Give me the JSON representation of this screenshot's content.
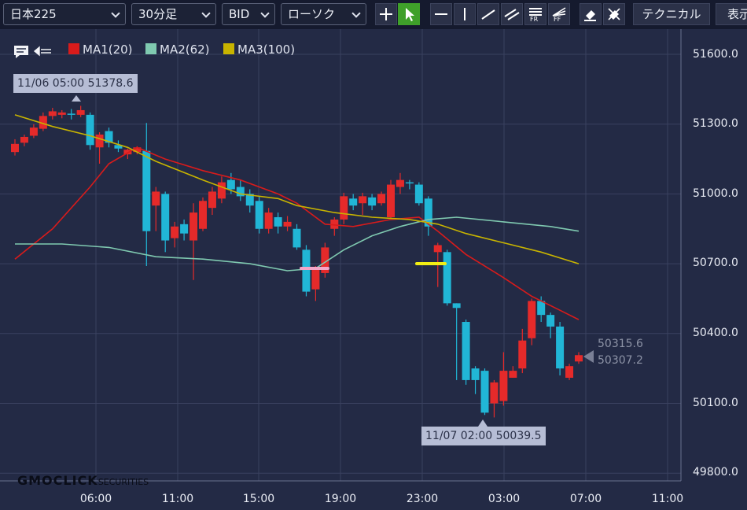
{
  "toolbar": {
    "symbol": "日本225",
    "timeframe": "30分足",
    "price_type": "BID",
    "chart_style": "ローソク",
    "technical_label": "テクニカル",
    "display_label": "表示",
    "icons": [
      "crosshair-icon",
      "pointer-icon",
      "horizontal-line-icon",
      "vertical-line-icon",
      "trend-line-icon",
      "channel-icon",
      "fibonacci-retracement-icon",
      "fibonacci-fan-icon",
      "eraser-icon",
      "eraser-all-icon"
    ],
    "draw_labels": {
      "fr": "FR",
      "ff": "FF"
    }
  },
  "legend": [
    {
      "name": "MA1(20)",
      "color": "#d81b1b"
    },
    {
      "name": "MA2(62)",
      "color": "#7fc9b0"
    },
    {
      "name": "MA3(100)",
      "color": "#c8b400"
    }
  ],
  "colors": {
    "up": "#e52a2a",
    "down": "#21b6d6",
    "grid": "#3a4160",
    "bg": "#232a45"
  },
  "chart_data": {
    "type": "candlestick",
    "ylim": [
      49700,
      51750
    ],
    "y_ticks": [
      "51600.0",
      "51300.0",
      "51000.0",
      "50700.0",
      "50400.0",
      "50100.0",
      "49800.0"
    ],
    "x_ticks": [
      "06:00",
      "11:00",
      "15:00",
      "19:00",
      "23:00",
      "03:00",
      "07:00",
      "11:00"
    ],
    "high_label": "11/06 05:00 51378.6",
    "low_label": "11/07 02:00 50039.5",
    "ask_price": "50315.6",
    "bid_price": "50307.2",
    "candles": [
      [
        51180,
        51215,
        51165,
        51235
      ],
      [
        51220,
        51245,
        51205,
        51255
      ],
      [
        51250,
        51285,
        51240,
        51300
      ],
      [
        51280,
        51335,
        51270,
        51350
      ],
      [
        51335,
        51355,
        51320,
        51370
      ],
      [
        51340,
        51350,
        51325,
        51360
      ],
      [
        51345,
        51340,
        51320,
        51365
      ],
      [
        51340,
        51360,
        51330,
        51378.6
      ],
      [
        51340,
        51210,
        51190,
        51350
      ],
      [
        51200,
        51255,
        51130,
        51265
      ],
      [
        51270,
        51220,
        51200,
        51285
      ],
      [
        51210,
        51195,
        51180,
        51230
      ],
      [
        51170,
        51190,
        51150,
        51195
      ],
      [
        51180,
        51200,
        51170,
        51205
      ],
      [
        51185,
        50840,
        50690,
        51305
      ],
      [
        50950,
        51010,
        50840,
        51030
      ],
      [
        51000,
        50800,
        50750,
        51010
      ],
      [
        50810,
        50860,
        50770,
        50880
      ],
      [
        50870,
        50830,
        50800,
        50890
      ],
      [
        50800,
        50920,
        50630,
        50960
      ],
      [
        50850,
        50970,
        50840,
        50985
      ],
      [
        50940,
        51010,
        50910,
        51030
      ],
      [
        50980,
        51050,
        50960,
        51075
      ],
      [
        51060,
        51020,
        51000,
        51090
      ],
      [
        51030,
        50990,
        50970,
        51060
      ],
      [
        51000,
        50950,
        50920,
        51020
      ],
      [
        50970,
        50850,
        50830,
        50990
      ],
      [
        50850,
        50920,
        50830,
        50940
      ],
      [
        50900,
        50860,
        50830,
        50920
      ],
      [
        50860,
        50880,
        50840,
        50905
      ],
      [
        50850,
        50770,
        50760,
        50870
      ],
      [
        50760,
        50580,
        50560,
        50780
      ],
      [
        50590,
        50680,
        50540,
        50690
      ],
      [
        50660,
        50770,
        50640,
        50790
      ],
      [
        50850,
        50890,
        50820,
        50900
      ],
      [
        50890,
        50990,
        50870,
        51005
      ],
      [
        50980,
        50950,
        50930,
        51000
      ],
      [
        50960,
        50990,
        50910,
        51005
      ],
      [
        50985,
        50950,
        50930,
        51000
      ],
      [
        50960,
        51000,
        50950,
        51010
      ],
      [
        50900,
        51040,
        50890,
        51060
      ],
      [
        51030,
        51060,
        51000,
        51090
      ],
      [
        51050,
        51045,
        51020,
        51060
      ],
      [
        51040,
        50960,
        50950,
        51050
      ],
      [
        50980,
        50860,
        50820,
        50990
      ],
      [
        50750,
        50780,
        50600,
        50790
      ],
      [
        50750,
        50530,
        50520,
        50760
      ],
      [
        50530,
        50510,
        50200,
        50530
      ],
      [
        50450,
        50200,
        50180,
        50460
      ],
      [
        50250,
        50200,
        50140,
        50260
      ],
      [
        50240,
        50060,
        50050,
        50250
      ],
      [
        50100,
        50190,
        50039.5,
        50200
      ],
      [
        50110,
        50240,
        50090,
        50320
      ],
      [
        50210,
        50240,
        50210,
        50260
      ],
      [
        50250,
        50370,
        50230,
        50420
      ],
      [
        50380,
        50540,
        50350,
        50550
      ],
      [
        50540,
        50480,
        50450,
        50560
      ],
      [
        50480,
        50430,
        50380,
        50490
      ],
      [
        50430,
        50250,
        50220,
        50450
      ],
      [
        50210,
        50260,
        50200,
        50270
      ],
      [
        50280,
        50307.2,
        50270,
        50320
      ]
    ],
    "series": [
      {
        "name": "MA1(20)",
        "values": [
          [
            0,
            50720
          ],
          [
            4,
            50850
          ],
          [
            8,
            51030
          ],
          [
            10,
            51130
          ],
          [
            13,
            51200
          ],
          [
            16,
            51150
          ],
          [
            20,
            51100
          ],
          [
            24,
            51060
          ],
          [
            28,
            51000
          ],
          [
            30,
            50960
          ],
          [
            33,
            50870
          ],
          [
            36,
            50860
          ],
          [
            40,
            50890
          ],
          [
            43,
            50900
          ],
          [
            45,
            50840
          ],
          [
            48,
            50740
          ],
          [
            52,
            50640
          ],
          [
            55,
            50560
          ],
          [
            58,
            50500
          ],
          [
            60,
            50460
          ]
        ]
      },
      {
        "name": "MA2(62)",
        "values": [
          [
            0,
            50785
          ],
          [
            5,
            50785
          ],
          [
            10,
            50770
          ],
          [
            15,
            50730
          ],
          [
            20,
            50720
          ],
          [
            25,
            50700
          ],
          [
            29,
            50670
          ],
          [
            32,
            50680
          ],
          [
            35,
            50760
          ],
          [
            38,
            50820
          ],
          [
            41,
            50860
          ],
          [
            44,
            50890
          ],
          [
            47,
            50900
          ],
          [
            52,
            50880
          ],
          [
            57,
            50860
          ],
          [
            60,
            50840
          ]
        ]
      },
      {
        "name": "MA3(100)",
        "values": [
          [
            0,
            51340
          ],
          [
            4,
            51290
          ],
          [
            8,
            51250
          ],
          [
            12,
            51200
          ],
          [
            15,
            51140
          ],
          [
            20,
            51060
          ],
          [
            24,
            51000
          ],
          [
            28,
            50980
          ],
          [
            30,
            50950
          ],
          [
            34,
            50920
          ],
          [
            38,
            50900
          ],
          [
            42,
            50890
          ],
          [
            45,
            50870
          ],
          [
            48,
            50830
          ],
          [
            52,
            50790
          ],
          [
            56,
            50750
          ],
          [
            60,
            50700
          ]
        ]
      }
    ]
  }
}
